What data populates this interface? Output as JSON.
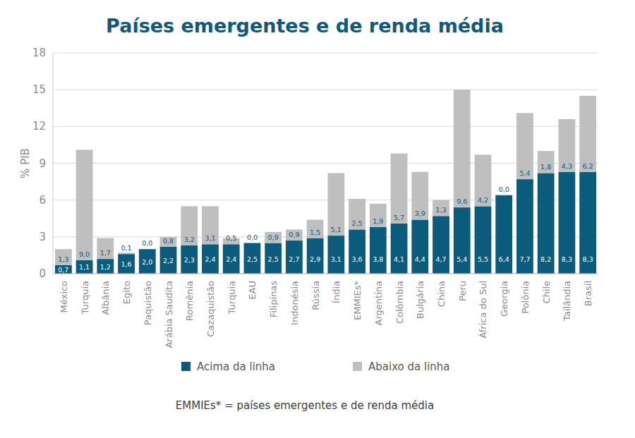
{
  "chart_data": {
    "type": "bar",
    "title": "Países emergentes e de renda média",
    "ylabel": "% PIB",
    "annotations": [
      "EMMIEs* = países emergentes e de renda média"
    ],
    "categories": [
      "México",
      "Turquia",
      "Albânia",
      "Egito",
      "Paquistão",
      "Arábia Saudita",
      "Romênia",
      "Cazaquistão",
      "Turquia",
      "EAU",
      "Filipinas",
      "Indonésia",
      "Rússia",
      "Índia",
      "EMMIEs*",
      "Argentina",
      "Colômbia",
      "Bulgária",
      "China",
      "Peru",
      "África do Sul",
      "Georgia",
      "Polônia",
      "Chile",
      "Tailândia",
      "Brasil"
    ],
    "series": [
      {
        "name": "Acima da linha",
        "color": "#0b5b7d",
        "values": [
          0.7,
          1.1,
          1.2,
          1.6,
          2.0,
          2.2,
          2.3,
          2.4,
          2.4,
          2.5,
          2.5,
          2.7,
          2.9,
          3.1,
          3.6,
          3.8,
          4.1,
          4.4,
          4.7,
          5.4,
          5.5,
          6.4,
          7.7,
          8.2,
          8.3,
          8.3
        ],
        "value_labels": [
          "0,7",
          "1,1",
          "1,2",
          "1,6",
          "2,0",
          "2,2",
          "2,3",
          "2,4",
          "2,4",
          "2,5",
          "2,5",
          "2,7",
          "2,9",
          "3,1",
          "3,6",
          "3,8",
          "4,1",
          "4,4",
          "4,7",
          "5,4",
          "5,5",
          "6,4",
          "7,7",
          "8,2",
          "8,3",
          "8,3"
        ]
      },
      {
        "name": "Abaixo da linha",
        "color": "#bfbfbf",
        "values": [
          1.3,
          9.0,
          1.7,
          0.1,
          0.0,
          0.8,
          3.2,
          3.1,
          0.5,
          0.0,
          0.9,
          0.9,
          1.5,
          5.1,
          2.5,
          1.9,
          5.7,
          3.9,
          1.3,
          9.6,
          4.2,
          0.0,
          5.4,
          1.8,
          4.3,
          6.2
        ],
        "value_labels": [
          "1,3",
          "9,0",
          "1,7",
          "0,1",
          "0,0",
          "0,8",
          "3,2",
          "3,1",
          "0,5",
          "0,0",
          "0,9",
          "0,9",
          "1,5",
          "5,1",
          "2,5",
          "1,9",
          "5,7",
          "3,9",
          "1,3",
          "9,6",
          "4,2",
          "0,0",
          "5,4",
          "1,8",
          "4,3",
          "6,2"
        ]
      }
    ],
    "ylim": [
      0,
      18
    ],
    "yticks": [
      0,
      3,
      6,
      9,
      12,
      15,
      18
    ],
    "grid": true,
    "stacked": true,
    "data_labels": true,
    "legend": "bottom"
  }
}
